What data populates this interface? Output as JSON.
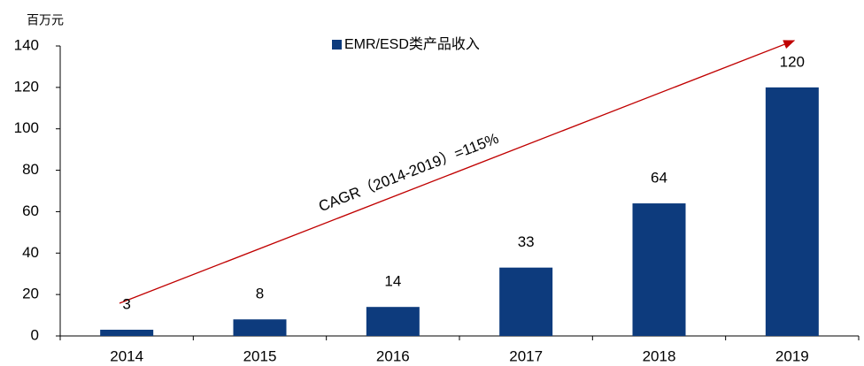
{
  "chart_data": {
    "type": "bar",
    "y_axis_unit": "百万元",
    "legend": "EMR/ESD类产品收入",
    "annotation": "CAGR（2014-2019）=115%",
    "categories": [
      "2014",
      "2015",
      "2016",
      "2017",
      "2018",
      "2019"
    ],
    "series": [
      {
        "name": "EMR/ESD类产品收入",
        "color": "#0d3b7d",
        "values": [
          3,
          8,
          14,
          33,
          64,
          120
        ]
      }
    ],
    "ylim": [
      0,
      140
    ],
    "yticks": [
      0,
      20,
      40,
      60,
      80,
      100,
      120,
      140
    ],
    "grid": false
  }
}
